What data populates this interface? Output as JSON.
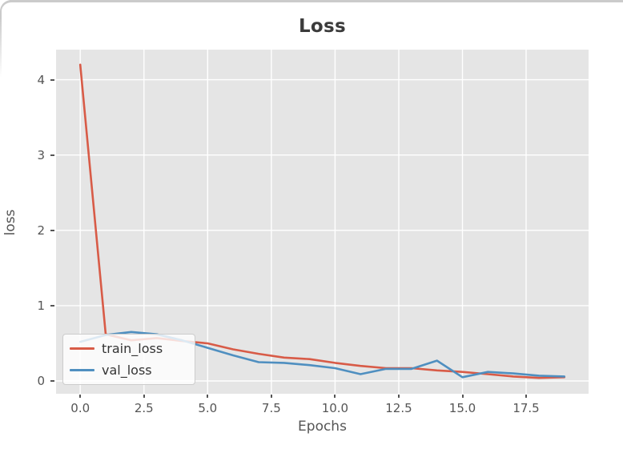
{
  "figure": {
    "panel_border_color": "#cbcbcb",
    "background": "#ffffff"
  },
  "chart_data": {
    "type": "line",
    "title": "Loss",
    "xlabel": "Epochs",
    "ylabel": "loss",
    "x": [
      0,
      1,
      2,
      3,
      4,
      5,
      6,
      7,
      8,
      9,
      10,
      11,
      12,
      13,
      14,
      15,
      16,
      17,
      18,
      19
    ],
    "series": [
      {
        "name": "train_loss",
        "color": "#d85b47",
        "values": [
          4.2,
          0.62,
          0.54,
          0.57,
          0.53,
          0.5,
          0.42,
          0.36,
          0.31,
          0.29,
          0.24,
          0.2,
          0.17,
          0.17,
          0.14,
          0.12,
          0.09,
          0.06,
          0.04,
          0.05
        ]
      },
      {
        "name": "val_loss",
        "color": "#4f8fc0",
        "values": [
          0.52,
          0.61,
          0.65,
          0.62,
          0.54,
          0.44,
          0.34,
          0.25,
          0.24,
          0.21,
          0.17,
          0.09,
          0.16,
          0.16,
          0.27,
          0.05,
          0.12,
          0.1,
          0.07,
          0.06
        ]
      }
    ],
    "xlim": [
      -0.95,
      19.95
    ],
    "ylim": [
      -0.17,
      4.4
    ],
    "xticks": {
      "values": [
        0,
        2.5,
        5,
        7.5,
        10,
        12.5,
        15,
        17.5
      ],
      "labels": [
        "0.0",
        "2.5",
        "5.0",
        "7.5",
        "10.0",
        "12.5",
        "15.0",
        "17.5"
      ]
    },
    "yticks": {
      "values": [
        0,
        1,
        2,
        3,
        4
      ],
      "labels": [
        "0",
        "1",
        "2",
        "3",
        "4"
      ]
    },
    "grid": true,
    "legend_position": "lower left",
    "plot_bg": "#e5e5e5",
    "grid_color": "#ffffff",
    "tick_color": "#555555",
    "line_width": 2.6
  }
}
